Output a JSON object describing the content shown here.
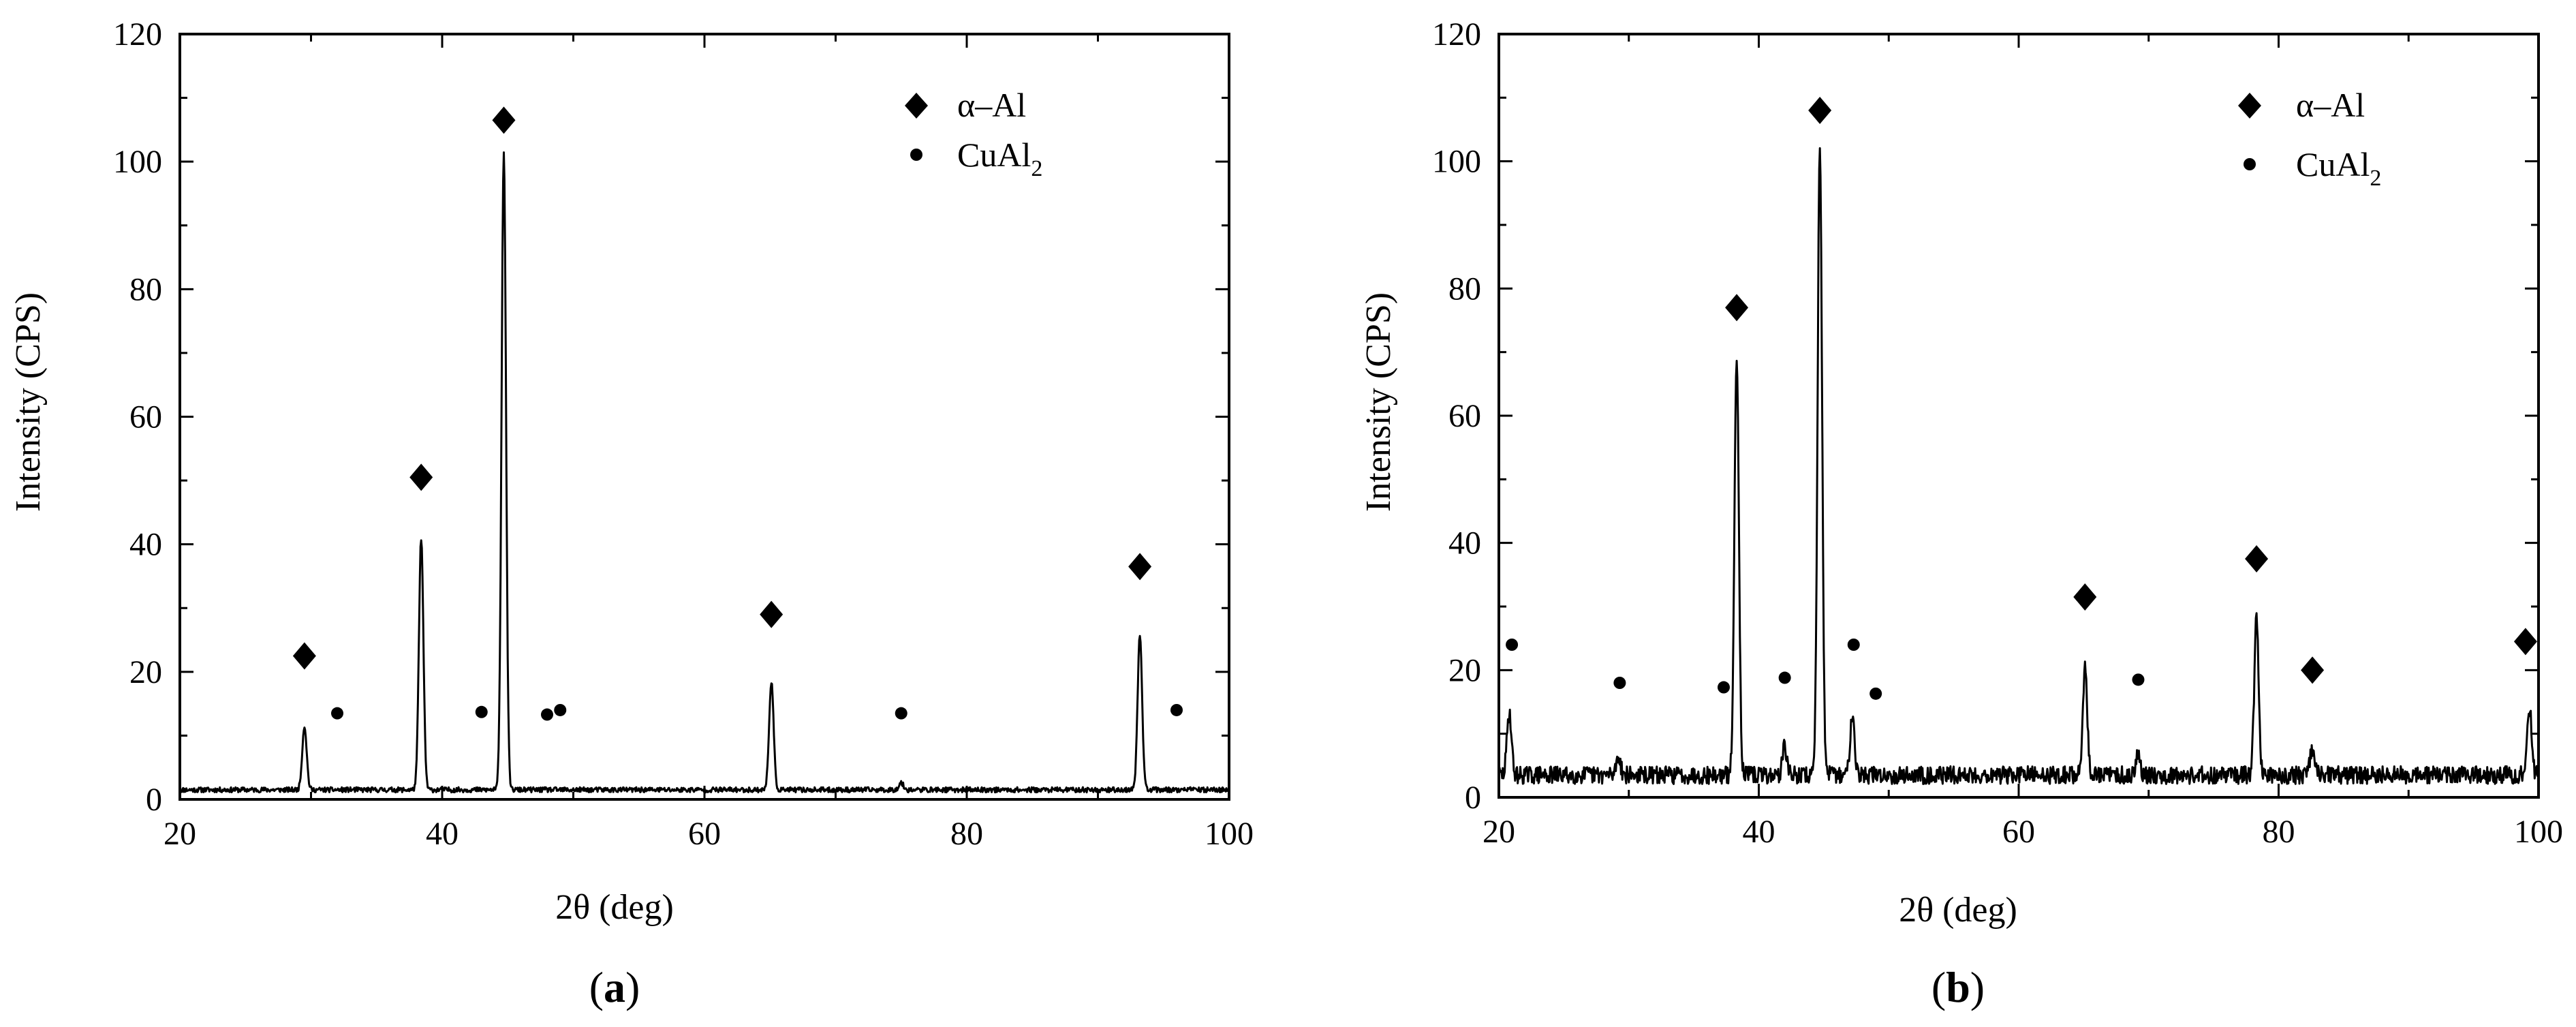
{
  "chart_data": [
    {
      "type": "line",
      "panel_label": {
        "open": "(",
        "letter": "a",
        "close": ")"
      },
      "xlabel": "2θ (deg)",
      "ylabel": "Intensity (CPS)",
      "xlim": [
        20,
        100
      ],
      "ylim": [
        0,
        120
      ],
      "xticks": [
        20,
        40,
        60,
        80,
        100
      ],
      "yticks": [
        0,
        20,
        40,
        60,
        80,
        100,
        120
      ],
      "baseline": 1.5,
      "noise": 0.4,
      "peaks": [
        {
          "x": 29.5,
          "y": 11.5
        },
        {
          "x": 38.4,
          "y": 41
        },
        {
          "x": 44.7,
          "y": 101.5
        },
        {
          "x": 65.1,
          "y": 18.5
        },
        {
          "x": 75.0,
          "y": 2.6
        },
        {
          "x": 93.2,
          "y": 26
        }
      ],
      "legend": {
        "alpha_al": {
          "greek": "α",
          "dash": "–",
          "rest": "Al"
        },
        "cual2": {
          "base": "CuAl",
          "sub": "2"
        }
      },
      "alpha_al_markers": [
        {
          "x": 29.5,
          "y": 22.5
        },
        {
          "x": 38.4,
          "y": 50.5
        },
        {
          "x": 44.7,
          "y": 106.5
        },
        {
          "x": 65.1,
          "y": 29
        },
        {
          "x": 93.2,
          "y": 36.5
        }
      ],
      "cual2_markers": [
        {
          "x": 32.0,
          "y": 13.5
        },
        {
          "x": 43.0,
          "y": 13.7
        },
        {
          "x": 48.0,
          "y": 13.3
        },
        {
          "x": 49.0,
          "y": 14.0
        },
        {
          "x": 75.0,
          "y": 13.5
        },
        {
          "x": 96.0,
          "y": 14.0
        }
      ]
    },
    {
      "type": "line",
      "panel_label": {
        "open": "(",
        "letter": "b",
        "close": ")"
      },
      "xlabel": "2θ (deg)",
      "ylabel": "Intensity (CPS)",
      "xlim": [
        20,
        100
      ],
      "ylim": [
        0,
        120
      ],
      "xticks": [
        20,
        40,
        60,
        80,
        100
      ],
      "yticks": [
        0,
        20,
        40,
        60,
        80,
        100,
        120
      ],
      "baseline": 3.5,
      "noise": 1.4,
      "peaks": [
        {
          "x": 20.8,
          "y": 13.5
        },
        {
          "x": 29.2,
          "y": 6.5
        },
        {
          "x": 38.3,
          "y": 70
        },
        {
          "x": 42.0,
          "y": 8
        },
        {
          "x": 44.7,
          "y": 103
        },
        {
          "x": 47.2,
          "y": 13.5
        },
        {
          "x": 65.1,
          "y": 20.5
        },
        {
          "x": 69.2,
          "y": 7
        },
        {
          "x": 78.3,
          "y": 28
        },
        {
          "x": 82.6,
          "y": 7.5
        },
        {
          "x": 99.3,
          "y": 14
        }
      ],
      "legend": {
        "alpha_al": {
          "greek": "α",
          "dash": "–",
          "rest": "Al"
        },
        "cual2": {
          "base": "CuAl",
          "sub": "2"
        }
      },
      "alpha_al_markers": [
        {
          "x": 38.3,
          "y": 77
        },
        {
          "x": 44.7,
          "y": 108
        },
        {
          "x": 65.1,
          "y": 31.5
        },
        {
          "x": 78.3,
          "y": 37.5
        },
        {
          "x": 82.6,
          "y": 20
        },
        {
          "x": 99.0,
          "y": 24.5
        }
      ],
      "cual2_markers": [
        {
          "x": 21.0,
          "y": 24.0
        },
        {
          "x": 29.3,
          "y": 18.0
        },
        {
          "x": 37.3,
          "y": 17.3
        },
        {
          "x": 42.0,
          "y": 18.8
        },
        {
          "x": 47.3,
          "y": 24.0
        },
        {
          "x": 49.0,
          "y": 16.3
        },
        {
          "x": 69.2,
          "y": 18.5
        }
      ]
    }
  ]
}
